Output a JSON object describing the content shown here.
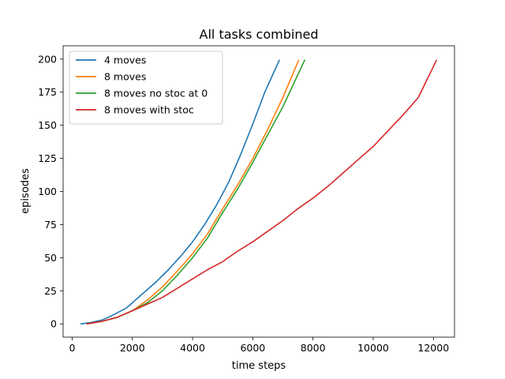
{
  "chart_data": {
    "type": "line",
    "title": "All tasks combined",
    "xlabel": "time steps",
    "ylabel": "episodes",
    "xlim": [
      -300,
      12700
    ],
    "ylim": [
      -10,
      210
    ],
    "xticks": [
      0,
      2000,
      4000,
      6000,
      8000,
      10000,
      12000
    ],
    "yticks": [
      0,
      25,
      50,
      75,
      100,
      125,
      150,
      175,
      200
    ],
    "grid": false,
    "legend_position": "top-left",
    "series": [
      {
        "name": "4 moves",
        "color": "#1f77b4",
        "x": [
          300,
          600,
          1000,
          1300,
          1800,
          2000,
          2400,
          2800,
          3200,
          3600,
          4000,
          4400,
          4800,
          5200,
          5600,
          6000,
          6400,
          6880
        ],
        "y": [
          0,
          1,
          3,
          6,
          12,
          16,
          24,
          32,
          41,
          51,
          62,
          75,
          90,
          107,
          128,
          151,
          175,
          199
        ]
      },
      {
        "name": "8 moves",
        "color": "#ff7f0e",
        "x": [
          500,
          1000,
          1500,
          2000,
          2500,
          3000,
          3500,
          4000,
          4500,
          5000,
          5500,
          6000,
          6500,
          7000,
          7520
        ],
        "y": [
          0,
          2,
          5,
          10,
          18,
          28,
          40,
          53,
          68,
          87,
          105,
          125,
          147,
          171,
          199
        ]
      },
      {
        "name": "8 moves no stoc at 0",
        "color": "#2ca02c",
        "x": [
          500,
          1000,
          1500,
          2000,
          2500,
          3000,
          3500,
          4000,
          4500,
          5000,
          5500,
          6000,
          6500,
          7000,
          7720
        ],
        "y": [
          0,
          2,
          5,
          10,
          16,
          25,
          37,
          50,
          65,
          84,
          102,
          122,
          143,
          164,
          199
        ]
      },
      {
        "name": "8 moves with stoc",
        "color": "#d62728",
        "x": [
          500,
          1000,
          1500,
          2000,
          2500,
          3000,
          3500,
          4000,
          4500,
          5000,
          5500,
          6000,
          6500,
          7000,
          7500,
          8000,
          8500,
          9000,
          9500,
          10000,
          10500,
          11000,
          11500,
          12100
        ],
        "y": [
          0,
          2,
          5,
          10,
          15,
          20,
          27,
          34,
          41,
          47,
          55,
          62,
          70,
          78,
          87,
          95,
          104,
          114,
          124,
          134,
          146,
          158,
          171,
          199
        ]
      }
    ]
  }
}
